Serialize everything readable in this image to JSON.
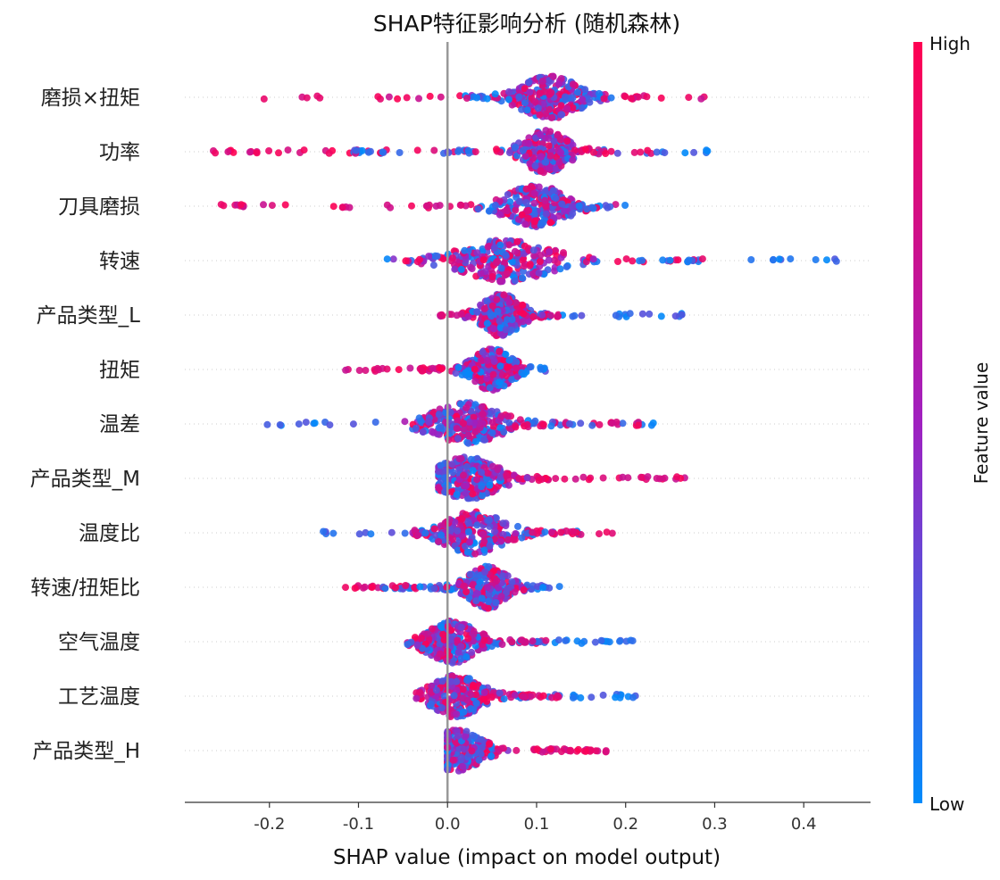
{
  "chart_data": {
    "type": "scatter",
    "title": "SHAP特征影响分析 (随机森林)",
    "xlabel": "SHAP value (impact on model output)",
    "ylabel": "",
    "xlim": [
      -0.295,
      0.475
    ],
    "x_ticks": [
      -0.2,
      -0.1,
      0.0,
      0.1,
      0.2,
      0.3,
      0.4
    ],
    "x_tick_labels": [
      "-0.2",
      "-0.1",
      "0.0",
      "0.1",
      "0.2",
      "0.3",
      "0.4"
    ],
    "zero_line": 0.0,
    "grid": false,
    "colorbar": {
      "label": "Feature value",
      "high_label": "High",
      "low_label": "Low",
      "low_color": "#008bfb",
      "mid_color": "#a020c0",
      "high_color": "#ff0052"
    },
    "features": [
      {
        "name": "磨损×扭矩",
        "low_min": 0.02,
        "low_max": 0.2,
        "high_min": -0.21,
        "high_max": 0.325,
        "center": 0.115,
        "spread": 0.06
      },
      {
        "name": "功率",
        "low_min": -0.12,
        "low_max": 0.295,
        "high_min": -0.265,
        "high_max": 0.24,
        "center": 0.11,
        "spread": 0.045
      },
      {
        "name": "刀具磨损",
        "low_min": 0.03,
        "low_max": 0.2,
        "high_min": -0.255,
        "high_max": 0.19,
        "center": 0.1,
        "spread": 0.06
      },
      {
        "name": "转速",
        "low_min": -0.07,
        "low_max": 0.445,
        "high_min": -0.05,
        "high_max": 0.3,
        "center": 0.065,
        "spread": 0.09
      },
      {
        "name": "产品类型_L",
        "low_min": 0.03,
        "low_max": 0.265,
        "high_min": -0.01,
        "high_max": 0.13,
        "center": 0.06,
        "spread": 0.04
      },
      {
        "name": "扭矩",
        "low_min": 0.02,
        "low_max": 0.11,
        "high_min": -0.12,
        "high_max": 0.07,
        "center": 0.05,
        "spread": 0.04
      },
      {
        "name": "温差",
        "low_min": -0.205,
        "low_max": 0.235,
        "high_min": -0.03,
        "high_max": 0.22,
        "center": 0.02,
        "spread": 0.07
      },
      {
        "name": "产品类型_M",
        "low_min": -0.01,
        "low_max": 0.045,
        "high_min": 0.04,
        "high_max": 0.272,
        "center": 0.022,
        "spread": 0.06
      },
      {
        "name": "温度比",
        "low_min": -0.145,
        "low_max": 0.15,
        "high_min": -0.04,
        "high_max": 0.19,
        "center": 0.03,
        "spread": 0.06
      },
      {
        "name": "转速/扭矩比",
        "low_min": -0.075,
        "low_max": 0.128,
        "high_min": -0.12,
        "high_max": 0.09,
        "center": 0.045,
        "spread": 0.04
      },
      {
        "name": "空气温度",
        "low_min": -0.03,
        "low_max": 0.208,
        "high_min": -0.045,
        "high_max": 0.12,
        "center": 0.005,
        "spread": 0.05
      },
      {
        "name": "工艺温度",
        "low_min": -0.02,
        "low_max": 0.213,
        "high_min": -0.035,
        "high_max": 0.13,
        "center": 0.01,
        "spread": 0.05
      },
      {
        "name": "产品类型_H",
        "low_min": 0.0,
        "low_max": 0.05,
        "high_min": 0.02,
        "high_max": 0.185,
        "center": 0.01,
        "spread": 0.05
      }
    ]
  }
}
